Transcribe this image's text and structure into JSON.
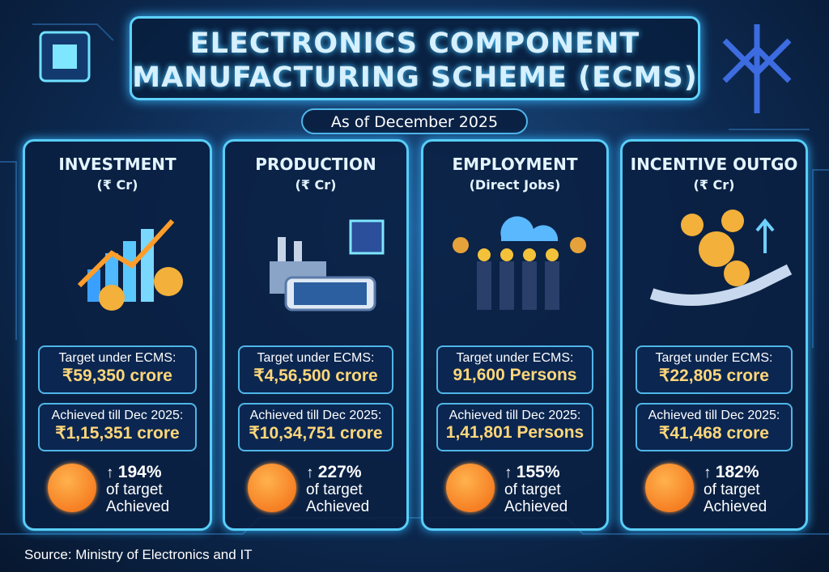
{
  "header": {
    "title_line1": "ELECTRONICS COMPONENT",
    "title_line2": "MANUFACTURING SCHEME (ECMS)",
    "subtitle": "As of December 2025"
  },
  "cards": [
    {
      "title": "INVESTMENT",
      "unit": "(₹ Cr)",
      "target_label": "Target under ECMS:",
      "target_value": "₹59,350 crore",
      "achieved_label": "Achieved till Dec 2025:",
      "achieved_value": "₹1,15,351 crore",
      "percent": "194%",
      "note_1": "of target",
      "note_2": "Achieved"
    },
    {
      "title": "PRODUCTION",
      "unit": "(₹ Cr)",
      "target_label": "Target under ECMS:",
      "target_value": "₹4,56,500 crore",
      "achieved_label": "Achieved till Dec 2025:",
      "achieved_value": "₹10,34,751 crore",
      "percent": "227%",
      "note_1": "of target",
      "note_2": "Achieved"
    },
    {
      "title": "EMPLOYMENT",
      "unit": "(Direct Jobs)",
      "target_label": "Target under ECMS:",
      "target_value": "91,600 Persons",
      "achieved_label": "Achieved till Dec 2025:",
      "achieved_value": "1,41,801 Persons",
      "percent": "155%",
      "note_1": "of target",
      "note_2": "Achieved"
    },
    {
      "title": "INCENTIVE OUTGO",
      "unit": "(₹ Cr)",
      "target_label": "Target under ECMS:",
      "target_value": "₹22,805 crore",
      "achieved_label": "Achieved till Dec 2025:",
      "achieved_value": "₹41,468 crore",
      "percent": "182%",
      "note_1": "of target",
      "note_2": "Achieved"
    }
  ],
  "source": "Source: Ministry of Electronics and IT"
}
